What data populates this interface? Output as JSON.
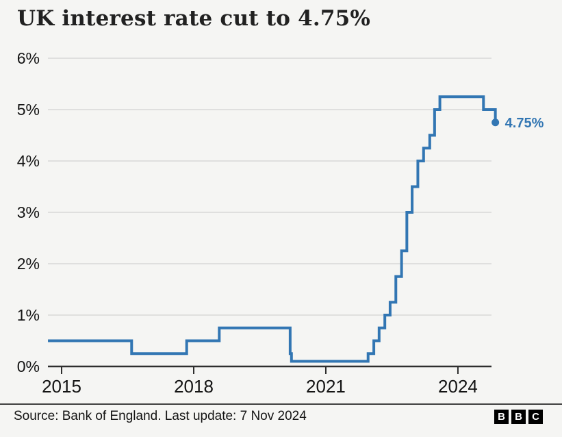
{
  "header": {
    "title": "UK interest rate cut to 4.75%"
  },
  "footer": {
    "source": "Source: Bank of England. Last update: 7 Nov 2024",
    "logo_letters": [
      "B",
      "B",
      "C"
    ]
  },
  "colors": {
    "line": "#3276b3",
    "annotation": "#3276b3",
    "background": "#f5f5f3",
    "grid": "#d8d8d8",
    "axis": "#2e2e2e",
    "title_text": "#212121",
    "label_text": "#141414"
  },
  "chart_data": {
    "type": "line",
    "step": true,
    "title": "UK interest rate cut to 4.75%",
    "xlabel": "",
    "ylabel": "",
    "unit": "%",
    "grid": true,
    "legend": "none",
    "xlim": [
      2014.69,
      2025.1
    ],
    "ylim": [
      0,
      6
    ],
    "x_ticks": [
      2015,
      2018,
      2021,
      2024
    ],
    "y_ticks": [
      "0%",
      "1%",
      "2%",
      "3%",
      "4%",
      "5%",
      "6%"
    ],
    "end_label": "4.75%",
    "end_value": 4.75,
    "points": [
      {
        "x": 2014.69,
        "y": 0.5
      },
      {
        "x": 2016.59,
        "y": 0.25
      },
      {
        "x": 2017.84,
        "y": 0.5
      },
      {
        "x": 2018.58,
        "y": 0.75
      },
      {
        "x": 2020.19,
        "y": 0.25
      },
      {
        "x": 2020.22,
        "y": 0.1
      },
      {
        "x": 2021.96,
        "y": 0.25
      },
      {
        "x": 2022.09,
        "y": 0.5
      },
      {
        "x": 2022.21,
        "y": 0.75
      },
      {
        "x": 2022.34,
        "y": 1.0
      },
      {
        "x": 2022.46,
        "y": 1.25
      },
      {
        "x": 2022.59,
        "y": 1.75
      },
      {
        "x": 2022.72,
        "y": 2.25
      },
      {
        "x": 2022.84,
        "y": 3.0
      },
      {
        "x": 2022.96,
        "y": 3.5
      },
      {
        "x": 2023.09,
        "y": 4.0
      },
      {
        "x": 2023.22,
        "y": 4.25
      },
      {
        "x": 2023.36,
        "y": 4.5
      },
      {
        "x": 2023.47,
        "y": 5.0
      },
      {
        "x": 2023.59,
        "y": 5.25
      },
      {
        "x": 2024.58,
        "y": 5.0
      },
      {
        "x": 2024.85,
        "y": 4.75
      }
    ]
  }
}
